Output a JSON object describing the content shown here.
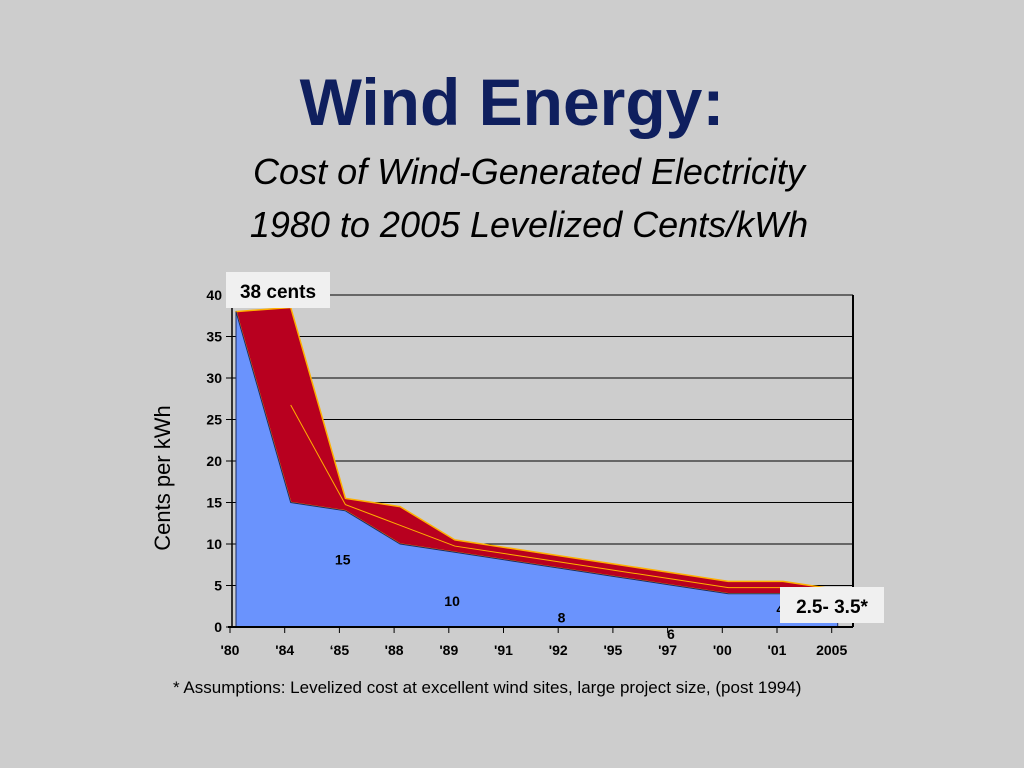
{
  "slide": {
    "title": "Wind Energy:",
    "subtitle_line1": "Cost of Wind-Generated Electricity",
    "subtitle_line2": "1980 to 2005 Levelized Cents/kWh",
    "footnote": "* Assumptions: Levelized cost at excellent wind sites, large project size,  (post 1994)"
  },
  "colors": {
    "title": "#0f1f5e",
    "lower_area": "#6a93fd",
    "upper_band": "#b8001f",
    "band_outline": "#ffb000",
    "background": "#cdcdcd"
  },
  "chart_data": {
    "type": "area",
    "ylabel": "Cents per kWh",
    "ylim": [
      0,
      40
    ],
    "yticks": [
      0,
      5,
      10,
      15,
      20,
      25,
      30,
      35,
      40
    ],
    "grid": true,
    "categories": [
      "'80",
      "'84",
      "‘85",
      "'88",
      "'89",
      "'91",
      "'92",
      "'95",
      "'97",
      "'00",
      "'01",
      "2005"
    ],
    "x_display": [
      "'80",
      "'84",
      "‘85",
      "'88",
      "'89",
      "'91",
      "'92",
      "'95",
      "'97",
      "'00",
      "'01",
      "2005"
    ],
    "series": [
      {
        "values": [
          38,
          15,
          14,
          10,
          9,
          8,
          7,
          6,
          5,
          4,
          4,
          3
        ]
      },
      {
        "values": [
          38,
          38.5,
          15.5,
          14.5,
          10.5,
          9.5,
          8.5,
          7.5,
          6.5,
          5.5,
          5.5,
          4.5
        ]
      }
    ],
    "area_labels": [
      {
        "text": "15",
        "x_index": 1
      },
      {
        "text": "10",
        "x_index": 3
      },
      {
        "text": "8",
        "x_index": 5
      },
      {
        "text": "6",
        "x_index": 7
      },
      {
        "text": "4",
        "x_index": 9
      }
    ],
    "callouts": {
      "start": "38 cents",
      "end": "2.5- 3.5*"
    }
  }
}
